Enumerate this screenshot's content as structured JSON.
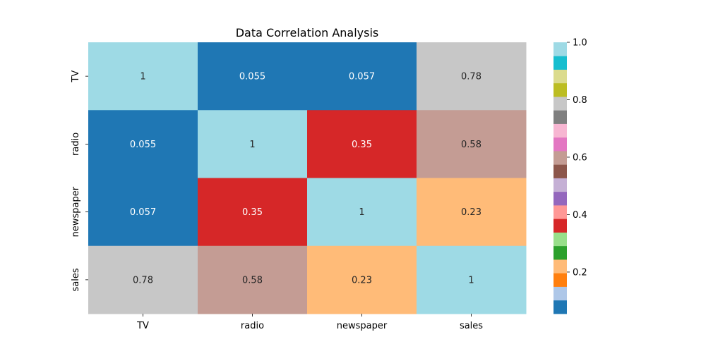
{
  "chart_data": {
    "type": "heatmap",
    "title": "Data Correlation Analysis",
    "xlabel": "",
    "ylabel": "",
    "x_categories": [
      "TV",
      "radio",
      "newspaper",
      "sales"
    ],
    "y_categories": [
      "TV",
      "radio",
      "newspaper",
      "sales"
    ],
    "values": [
      [
        1,
        0.055,
        0.057,
        0.78
      ],
      [
        0.055,
        1,
        0.35,
        0.58
      ],
      [
        0.057,
        0.35,
        1,
        0.23
      ],
      [
        0.78,
        0.58,
        0.23,
        1
      ]
    ],
    "annotations": [
      [
        "1",
        "0.055",
        "0.057",
        "0.78"
      ],
      [
        "0.055",
        "1",
        "0.35",
        "0.58"
      ],
      [
        "0.057",
        "0.35",
        "1",
        "0.23"
      ],
      [
        "0.78",
        "0.58",
        "0.23",
        "1"
      ]
    ],
    "colormap": "tab20",
    "colormap_colors": [
      "#1f77b4",
      "#aec7e8",
      "#ff7f0e",
      "#ffbb78",
      "#2ca02c",
      "#98df8a",
      "#d62728",
      "#ff9896",
      "#9467bd",
      "#c5b0d5",
      "#8c564b",
      "#c49c94",
      "#e377c2",
      "#f7b6d2",
      "#7f7f7f",
      "#c7c7c7",
      "#bcbd22",
      "#dbdb8d",
      "#17becf",
      "#9edae5"
    ],
    "vmin": 0.055,
    "vmax": 1.0,
    "colorbar": {
      "ticks": [
        0.2,
        0.4,
        0.6,
        0.8,
        1.0
      ],
      "tick_labels": [
        "0.2",
        "0.4",
        "0.6",
        "0.8",
        "1.0"
      ]
    },
    "grid": false,
    "legend": "colorbar-right"
  }
}
